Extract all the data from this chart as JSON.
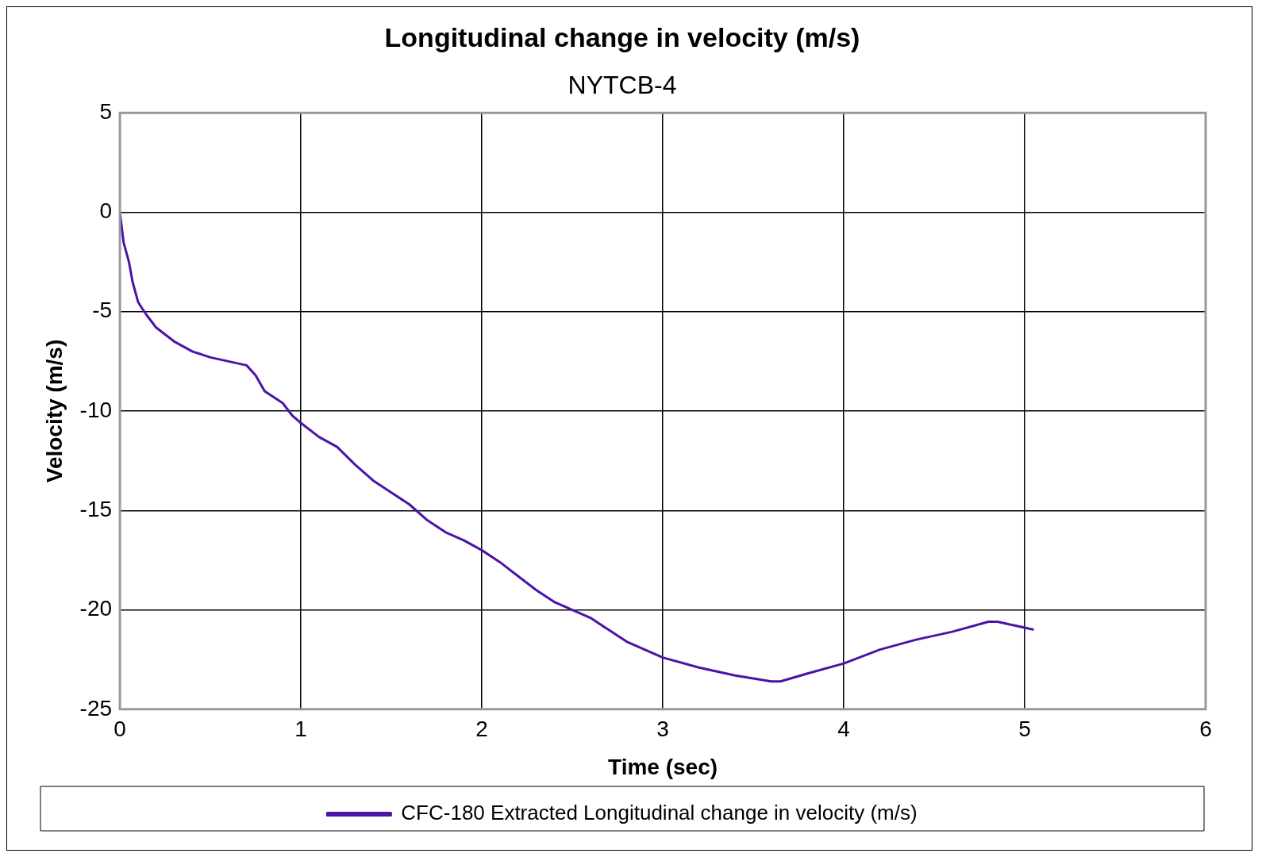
{
  "chart_data": {
    "type": "line",
    "title": "Longitudinal change in velocity (m/s)",
    "subtitle": "NYTCB-4",
    "xlabel": "Time (sec)",
    "ylabel": "Velocity (m/s)",
    "x": [
      0,
      0.02,
      0.05,
      0.07,
      0.1,
      0.12,
      0.15,
      0.2,
      0.3,
      0.4,
      0.5,
      0.6,
      0.7,
      0.75,
      0.8,
      0.9,
      0.95,
      1.0,
      1.1,
      1.2,
      1.3,
      1.4,
      1.5,
      1.6,
      1.7,
      1.8,
      1.9,
      2.0,
      2.1,
      2.2,
      2.3,
      2.4,
      2.5,
      2.6,
      2.7,
      2.8,
      2.9,
      3.0,
      3.2,
      3.4,
      3.6,
      3.65,
      3.8,
      4.0,
      4.2,
      4.4,
      4.6,
      4.8,
      4.85,
      4.95,
      5.05
    ],
    "series": [
      {
        "name": "CFC-180 Extracted Longitudinal change in velocity (m/s)",
        "color": "#4b14a8",
        "values": [
          0,
          -1.5,
          -2.5,
          -3.5,
          -4.5,
          -4.8,
          -5.2,
          -5.8,
          -6.5,
          -7.0,
          -7.3,
          -7.5,
          -7.7,
          -8.2,
          -9.0,
          -9.6,
          -10.2,
          -10.6,
          -11.3,
          -11.8,
          -12.7,
          -13.5,
          -14.1,
          -14.7,
          -15.5,
          -16.1,
          -16.5,
          -17.0,
          -17.6,
          -18.3,
          -19.0,
          -19.6,
          -20.0,
          -20.4,
          -21.0,
          -21.6,
          -22.0,
          -22.4,
          -22.9,
          -23.3,
          -23.6,
          -23.6,
          -23.2,
          -22.7,
          -22.0,
          -21.5,
          -21.1,
          -20.6,
          -20.6,
          -20.8,
          -21.0
        ]
      }
    ],
    "xlim": [
      0,
      6
    ],
    "xticks": [
      0,
      1,
      2,
      3,
      4,
      5,
      6
    ],
    "ylim": [
      -25,
      5
    ],
    "yticks": [
      -25,
      -20,
      -15,
      -10,
      -5,
      0,
      5
    ],
    "grid": true,
    "legend": "bottom",
    "marker": "none",
    "line_style": "solid"
  }
}
